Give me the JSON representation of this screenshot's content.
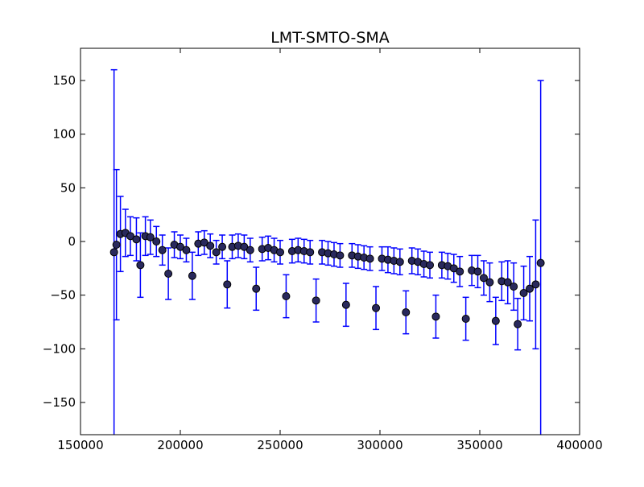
{
  "chart_data": {
    "type": "scatter",
    "title": "LMT-SMTO-SMA",
    "xlabel": "",
    "ylabel": "",
    "xlim": [
      150000,
      400000
    ],
    "ylim": [
      -180,
      180
    ],
    "grid": false,
    "xticks": [
      150000,
      200000,
      250000,
      300000,
      350000,
      400000
    ],
    "xtick_labels": [
      "150000",
      "200000",
      "250000",
      "300000",
      "350000",
      "400000"
    ],
    "yticks": [
      150,
      100,
      50,
      0,
      -50,
      -100,
      -150
    ],
    "ytick_labels": [
      "150",
      "100",
      "50",
      "0",
      "−50",
      "−100",
      "−150"
    ],
    "marker_color": "#000000",
    "marker_fill": "#29295c",
    "errorbar_color": "#0000ff",
    "series": [
      {
        "x": [
          166800,
          168000,
          170000,
          172500,
          175000,
          178000,
          180000,
          182500,
          185000,
          188000,
          191000,
          194000,
          197000,
          200000,
          203000,
          206000,
          209000,
          212000,
          215000,
          218000,
          221000,
          223500,
          226000,
          229000,
          232000,
          235000,
          238000,
          241000,
          244000,
          247000,
          250000,
          253000,
          256000,
          259000,
          262000,
          265000,
          268000,
          271000,
          274000,
          277000,
          280000,
          283000,
          286000,
          289000,
          292000,
          295000,
          298000,
          301000,
          304000,
          307000,
          310000,
          313000,
          316000,
          319000,
          322000,
          325000,
          328000,
          331000,
          334000,
          337000,
          340000,
          343000,
          346000,
          349000,
          352000,
          355000,
          358000,
          361000,
          364000,
          367000,
          369000,
          372000,
          375000,
          378000,
          380500
        ],
        "y": [
          -10,
          -3,
          7,
          8,
          5,
          2,
          -22,
          5,
          4,
          0,
          -8,
          -30,
          -3,
          -5,
          -8,
          -32,
          -2,
          -1,
          -4,
          -10,
          -5,
          -40,
          -5,
          -4,
          -5,
          -8,
          -44,
          -7,
          -6,
          -8,
          -10,
          -51,
          -9,
          -8,
          -9,
          -10,
          -55,
          -10,
          -11,
          -12,
          -13,
          -59,
          -13,
          -14,
          -15,
          -16,
          -62,
          -16,
          -17,
          -18,
          -19,
          -66,
          -18,
          -19,
          -21,
          -22,
          -70,
          -22,
          -23,
          -25,
          -28,
          -72,
          -27,
          -28,
          -34,
          -38,
          -74,
          -37,
          -38,
          -42,
          -77,
          -48,
          -44,
          -40,
          -20
        ],
        "err": [
          170,
          70,
          35,
          22,
          18,
          20,
          30,
          18,
          16,
          14,
          14,
          24,
          12,
          11,
          11,
          22,
          11,
          11,
          11,
          11,
          11,
          22,
          11,
          11,
          11,
          11,
          20,
          11,
          11,
          11,
          11,
          20,
          11,
          11,
          11,
          11,
          20,
          11,
          11,
          11,
          11,
          20,
          11,
          11,
          11,
          11,
          20,
          11,
          12,
          12,
          12,
          20,
          12,
          12,
          12,
          12,
          20,
          12,
          12,
          13,
          14,
          20,
          14,
          15,
          16,
          18,
          22,
          18,
          20,
          22,
          24,
          25,
          30,
          60,
          170
        ]
      }
    ]
  }
}
